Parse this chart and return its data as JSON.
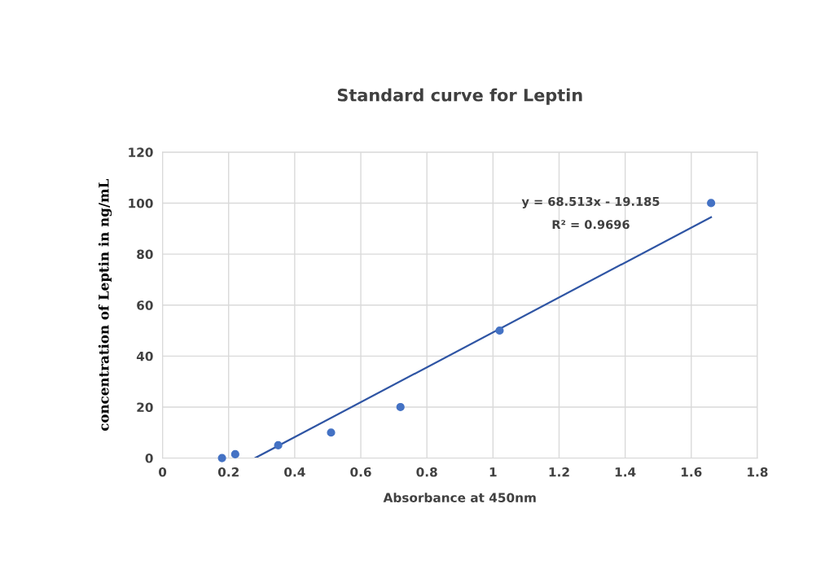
{
  "chart_data": {
    "type": "scatter",
    "title": "Standard curve for Leptin",
    "xlabel": "Absorbance at 450nm",
    "ylabel": "concentration of Leptin in ng/mL",
    "x": [
      0.18,
      0.22,
      0.35,
      0.51,
      0.72,
      1.02,
      1.66
    ],
    "series": [
      {
        "color": "#4472c4",
        "marker": "circle",
        "values": [
          0,
          1.5,
          5,
          10,
          20,
          50,
          100
        ]
      },
      {
        "type": "line",
        "color": "#2f55a4",
        "x": [
          0.28,
          1.66
        ],
        "values": [
          0,
          94.5
        ]
      }
    ],
    "annotations": [
      "y = 68.513x - 19.185",
      "R² = 0.9696"
    ],
    "xlim": [
      0,
      1.8
    ],
    "xticks": [
      0,
      0.2,
      0.4,
      0.6,
      0.8,
      1,
      1.2,
      1.4,
      1.6,
      1.8
    ],
    "ylim": [
      0,
      120
    ],
    "yticks": [
      0,
      20,
      40,
      60,
      80,
      100,
      120
    ],
    "grid": true,
    "line_style": "solid"
  }
}
